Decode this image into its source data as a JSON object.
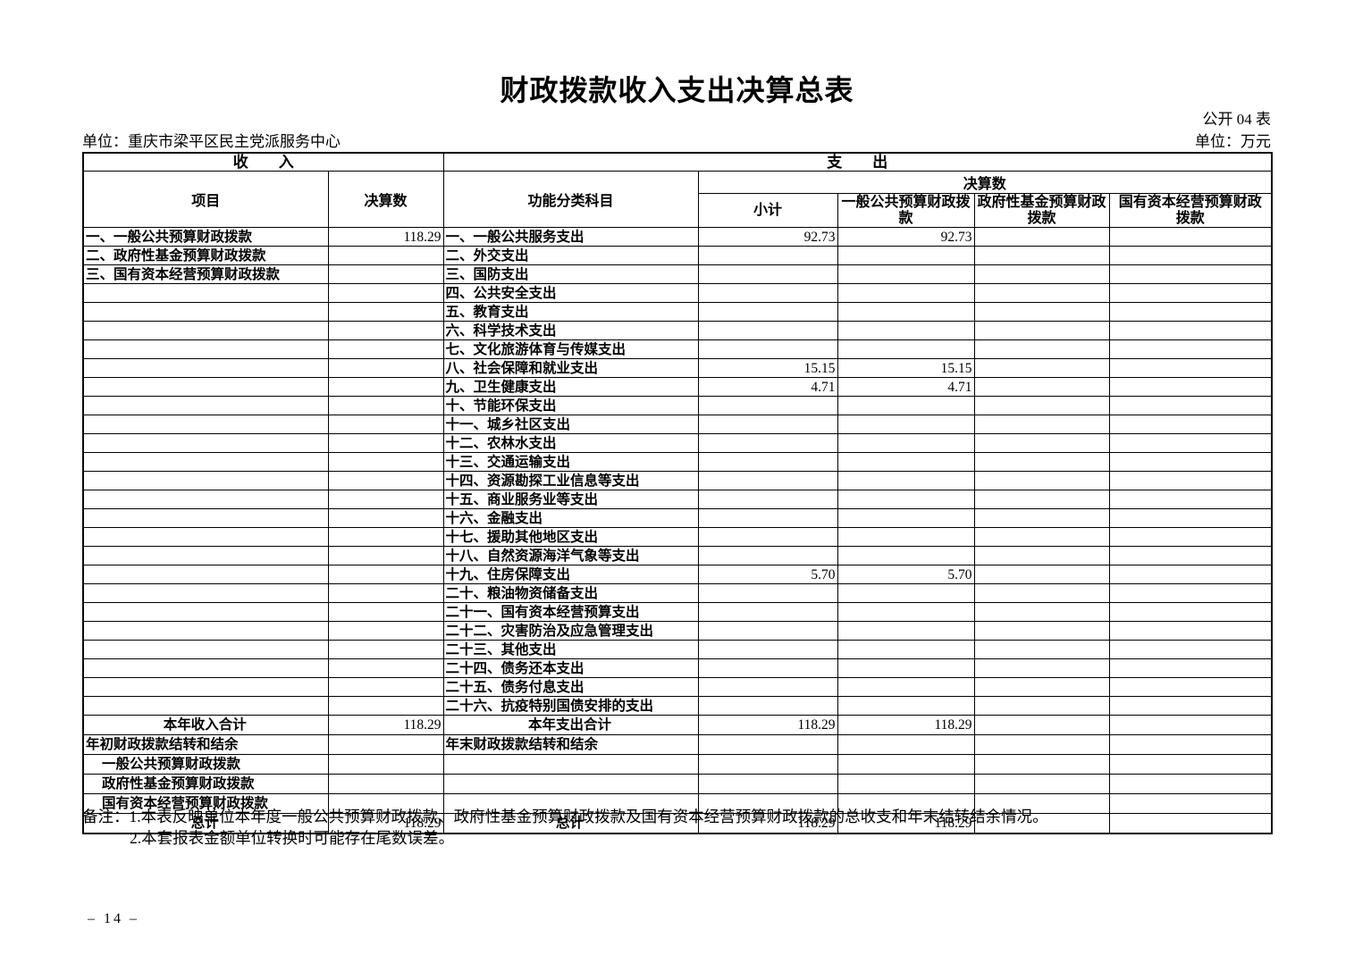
{
  "page": {
    "title": "财政拨款收入支出决算总表",
    "form_code": "公开 04 表",
    "unit_name": "单位：重庆市梁平区民主党派服务中心",
    "unit_currency": "单位：万元",
    "notes": [
      "备注：1.本表反映单位本年度一般公共预算财政拨款、政府性基金预算财政拨款及国有资本经营预算财政拨款的总收支和年末结转结余情况。",
      "2.本套报表金额单位转换时可能存在尾数误差。"
    ],
    "page_number": "– 14 –"
  },
  "table": {
    "header": {
      "income": "收　　入",
      "expense": "支　　出",
      "income_item": "项目",
      "income_amount": "决算数",
      "expense_item": "功能分类科目",
      "expense_amount": "决算数",
      "subtotal": "小计",
      "general_budget": "一般公共预算财政拨款",
      "gov_fund_budget": "政府性基金预算财政拨款",
      "state_capital_budget": "国有资本经营预算财政拨款"
    },
    "rows": [
      {
        "in": "一、一般公共预算财政拨款",
        "inv": "118.29",
        "ex": "一、一般公共服务支出",
        "sub": "92.73",
        "gen": "92.73",
        "fund": "",
        "cap": ""
      },
      {
        "in": "二、政府性基金预算财政拨款",
        "inv": "",
        "ex": "二、外交支出",
        "sub": "",
        "gen": "",
        "fund": "",
        "cap": ""
      },
      {
        "in": "三、国有资本经营预算财政拨款",
        "inv": "",
        "ex": "三、国防支出",
        "sub": "",
        "gen": "",
        "fund": "",
        "cap": ""
      },
      {
        "in": "",
        "inv": "",
        "ex": "四、公共安全支出",
        "sub": "",
        "gen": "",
        "fund": "",
        "cap": ""
      },
      {
        "in": "",
        "inv": "",
        "ex": "五、教育支出",
        "sub": "",
        "gen": "",
        "fund": "",
        "cap": ""
      },
      {
        "in": "",
        "inv": "",
        "ex": "六、科学技术支出",
        "sub": "",
        "gen": "",
        "fund": "",
        "cap": ""
      },
      {
        "in": "",
        "inv": "",
        "ex": "七、文化旅游体育与传媒支出",
        "sub": "",
        "gen": "",
        "fund": "",
        "cap": ""
      },
      {
        "in": "",
        "inv": "",
        "ex": "八、社会保障和就业支出",
        "sub": "15.15",
        "gen": "15.15",
        "fund": "",
        "cap": ""
      },
      {
        "in": "",
        "inv": "",
        "ex": "九、卫生健康支出",
        "sub": "4.71",
        "gen": "4.71",
        "fund": "",
        "cap": ""
      },
      {
        "in": "",
        "inv": "",
        "ex": "十、节能环保支出",
        "sub": "",
        "gen": "",
        "fund": "",
        "cap": ""
      },
      {
        "in": "",
        "inv": "",
        "ex": "十一、城乡社区支出",
        "sub": "",
        "gen": "",
        "fund": "",
        "cap": ""
      },
      {
        "in": "",
        "inv": "",
        "ex": "十二、农林水支出",
        "sub": "",
        "gen": "",
        "fund": "",
        "cap": ""
      },
      {
        "in": "",
        "inv": "",
        "ex": "十三、交通运输支出",
        "sub": "",
        "gen": "",
        "fund": "",
        "cap": ""
      },
      {
        "in": "",
        "inv": "",
        "ex": "十四、资源勘探工业信息等支出",
        "sub": "",
        "gen": "",
        "fund": "",
        "cap": ""
      },
      {
        "in": "",
        "inv": "",
        "ex": "十五、商业服务业等支出",
        "sub": "",
        "gen": "",
        "fund": "",
        "cap": ""
      },
      {
        "in": "",
        "inv": "",
        "ex": "十六、金融支出",
        "sub": "",
        "gen": "",
        "fund": "",
        "cap": ""
      },
      {
        "in": "",
        "inv": "",
        "ex": "十七、援助其他地区支出",
        "sub": "",
        "gen": "",
        "fund": "",
        "cap": ""
      },
      {
        "in": "",
        "inv": "",
        "ex": "十八、自然资源海洋气象等支出",
        "sub": "",
        "gen": "",
        "fund": "",
        "cap": ""
      },
      {
        "in": "",
        "inv": "",
        "ex": "十九、住房保障支出",
        "sub": "5.70",
        "gen": "5.70",
        "fund": "",
        "cap": ""
      },
      {
        "in": "",
        "inv": "",
        "ex": "二十、粮油物资储备支出",
        "sub": "",
        "gen": "",
        "fund": "",
        "cap": ""
      },
      {
        "in": "",
        "inv": "",
        "ex": "二十一、国有资本经营预算支出",
        "sub": "",
        "gen": "",
        "fund": "",
        "cap": ""
      },
      {
        "in": "",
        "inv": "",
        "ex": "二十二、灾害防治及应急管理支出",
        "sub": "",
        "gen": "",
        "fund": "",
        "cap": ""
      },
      {
        "in": "",
        "inv": "",
        "ex": "二十三、其他支出",
        "sub": "",
        "gen": "",
        "fund": "",
        "cap": ""
      },
      {
        "in": "",
        "inv": "",
        "ex": "二十四、债务还本支出",
        "sub": "",
        "gen": "",
        "fund": "",
        "cap": ""
      },
      {
        "in": "",
        "inv": "",
        "ex": "二十五、债务付息支出",
        "sub": "",
        "gen": "",
        "fund": "",
        "cap": ""
      },
      {
        "in": "",
        "inv": "",
        "ex": "二十六、抗疫特别国债安排的支出",
        "sub": "",
        "gen": "",
        "fund": "",
        "cap": ""
      },
      {
        "in": "本年收入合计",
        "in_align": "center",
        "inv": "118.29",
        "ex": "本年支出合计",
        "ex_align": "center",
        "sub": "118.29",
        "gen": "118.29",
        "fund": "",
        "cap": ""
      },
      {
        "in": "年初财政拨款结转和结余",
        "inv": "",
        "ex": "年末财政拨款结转和结余",
        "sub": "",
        "gen": "",
        "fund": "",
        "cap": ""
      },
      {
        "in": "一般公共预算财政拨款",
        "in_align": "indent",
        "inv": "",
        "ex": "",
        "sub": "",
        "gen": "",
        "fund": "",
        "cap": ""
      },
      {
        "in": "政府性基金预算财政拨款",
        "in_align": "indent",
        "inv": "",
        "ex": "",
        "sub": "",
        "gen": "",
        "fund": "",
        "cap": ""
      },
      {
        "in": "国有资本经营预算财政拨款",
        "in_align": "indent",
        "inv": "",
        "ex": "",
        "sub": "",
        "gen": "",
        "fund": "",
        "cap": ""
      },
      {
        "in": "总计",
        "in_align": "center",
        "inv": "118.29",
        "ex": "总计",
        "ex_align": "center",
        "sub": "118.29",
        "gen": "118.29",
        "fund": "",
        "cap": ""
      }
    ]
  }
}
